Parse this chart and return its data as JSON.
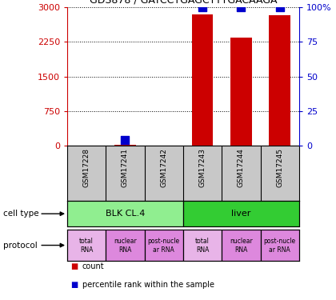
{
  "title": "GDS878 / GATCCTGAGCTTTGACAAGA",
  "samples": [
    "GSM17228",
    "GSM17241",
    "GSM17242",
    "GSM17243",
    "GSM17244",
    "GSM17245"
  ],
  "count_values": [
    0,
    20,
    0,
    2850,
    2350,
    2830
  ],
  "percentile_values": [
    0,
    4,
    0,
    100,
    100,
    100
  ],
  "ylim_left": [
    0,
    3000
  ],
  "ylim_right": [
    0,
    100
  ],
  "yticks_left": [
    0,
    750,
    1500,
    2250,
    3000
  ],
  "yticks_right": [
    0,
    25,
    50,
    75,
    100
  ],
  "ytick_labels_left": [
    "0",
    "750",
    "1500",
    "2250",
    "3000"
  ],
  "ytick_labels_right": [
    "0",
    "25",
    "50",
    "75",
    "100%"
  ],
  "cell_types": [
    {
      "label": "BLK CL.4",
      "span": [
        0,
        3
      ],
      "color": "#90ee90"
    },
    {
      "label": "liver",
      "span": [
        3,
        6
      ],
      "color": "#33cc33"
    }
  ],
  "protocols": [
    {
      "label": "total\nRNA"
    },
    {
      "label": "nuclear\nRNA"
    },
    {
      "label": "post-nucle\nar RNA"
    },
    {
      "label": "total\nRNA"
    },
    {
      "label": "nuclear\nRNA"
    },
    {
      "label": "post-nucle\nar RNA"
    }
  ],
  "proto_colors": [
    "#da70d6",
    "#da70d6",
    "#da70d6",
    "#da70d6",
    "#da70d6",
    "#da70d6"
  ],
  "proto_first_color": "#ee82ee",
  "count_color": "#cc0000",
  "percentile_color": "#0000cc",
  "bar_width": 0.55,
  "dot_size": 50,
  "background_color": "#ffffff",
  "left_tick_color": "#cc0000",
  "right_tick_color": "#0000cc",
  "sample_bg_color": "#c8c8c8"
}
